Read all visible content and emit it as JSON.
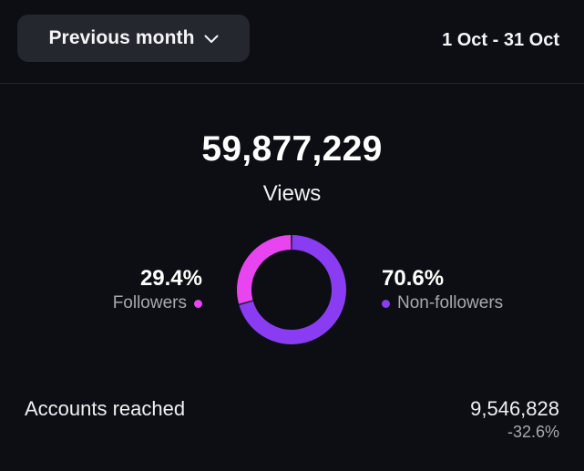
{
  "header": {
    "period_label": "Previous month",
    "date_range": "1 Oct - 31 Oct"
  },
  "views": {
    "value": "59,877,229",
    "label": "Views"
  },
  "breakdown": {
    "followers": {
      "percent_label": "29.4%",
      "percent": 29.4,
      "label": "Followers",
      "color": "#e844f0"
    },
    "non_followers": {
      "percent_label": "70.6%",
      "percent": 70.6,
      "label": "Non-followers",
      "color": "#8a3cf2"
    }
  },
  "accounts_reached": {
    "label": "Accounts reached",
    "value": "9,546,828",
    "change": "-32.6%"
  },
  "icons": {
    "dropdown": "chevron-down-icon"
  }
}
